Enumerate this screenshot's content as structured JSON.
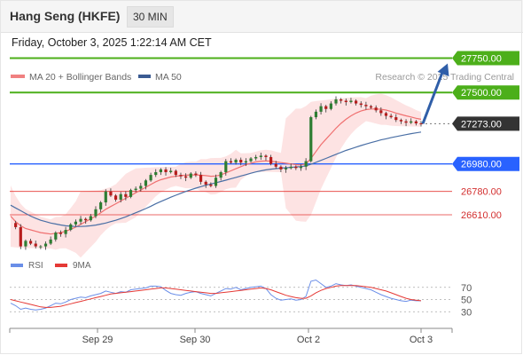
{
  "header": {
    "title": "Hang Seng (HKFE)",
    "timeframe": "30 MIN"
  },
  "datetime": "Friday, October 3, 2025 1:22:14 AM CET",
  "legend": {
    "ma20_label": "MA 20 + Bollinger Bands",
    "ma50_label": "MA 50",
    "credit": "Research © 2025 Trading Central"
  },
  "colors": {
    "up_candle": "#2e7d32",
    "down_candle": "#b71c1c",
    "ma20": "#f07070",
    "ma50": "#4a6fa5",
    "bollinger_fill": "#fde3e3",
    "resistance": "#4caf1a",
    "support_blue": "#2962ff",
    "support_red": "#e53935",
    "rsi": "#6a8ee8",
    "rsi_ma": "#e53935",
    "arrow": "#2f5ea8"
  },
  "chart_data": [
    {
      "type": "candlestick",
      "x_ticks": [
        "Sep 29",
        "Sep 30",
        "Oct 2",
        "Oct 3"
      ],
      "ylim": [
        26300,
        27850
      ],
      "levels": [
        {
          "value": 27750,
          "label": "27750.00",
          "style": "resistance"
        },
        {
          "value": 27500,
          "label": "27500.00",
          "style": "resistance"
        },
        {
          "value": 27273,
          "label": "27273.00",
          "style": "last-price"
        },
        {
          "value": 26980,
          "label": "26980.00",
          "style": "support"
        },
        {
          "value": 26780,
          "label": "26780.00",
          "style": "minor"
        },
        {
          "value": 26610,
          "label": "26610.00",
          "style": "minor"
        }
      ],
      "last_price": 27273,
      "projection_target": 27750,
      "series": [
        {
          "name": "MA 20 + Bollinger Bands"
        },
        {
          "name": "MA 50"
        }
      ],
      "price_path": [
        26550,
        26520,
        26380,
        26420,
        26400,
        26380,
        26380,
        26400,
        26430,
        26480,
        26470,
        26500,
        26540,
        26560,
        26580,
        26570,
        26600,
        26650,
        26700,
        26780,
        26750,
        26720,
        26760,
        26740,
        26790,
        26800,
        26820,
        26860,
        26900,
        26920,
        26940,
        26920,
        26930,
        26900,
        26890,
        26880,
        26910,
        26900,
        26850,
        26830,
        26820,
        26880,
        26920,
        27000,
        26990,
        27010,
        26990,
        27000,
        27020,
        27030,
        27040,
        27030,
        26980,
        26960,
        26940,
        26950,
        26960,
        26950,
        26960,
        27000,
        27320,
        27360,
        27400,
        27380,
        27420,
        27450,
        27440,
        27430,
        27440,
        27420,
        27410,
        27400,
        27390,
        27370,
        27350,
        27330,
        27320,
        27300,
        27290,
        27280,
        27290,
        27275,
        27273
      ],
      "ma20_path": [
        26600,
        26560,
        26530,
        26510,
        26500,
        26490,
        26480,
        26475,
        26470,
        26475,
        26480,
        26490,
        26505,
        26520,
        26540,
        26560,
        26580,
        26600,
        26625,
        26650,
        26670,
        26690,
        26710,
        26730,
        26750,
        26770,
        26790,
        26810,
        26830,
        26850,
        26865,
        26875,
        26885,
        26890,
        26895,
        26898,
        26900,
        26900,
        26898,
        26895,
        26890,
        26892,
        26900,
        26915,
        26930,
        26945,
        26960,
        26975,
        26985,
        26995,
        27000,
        27002,
        27000,
        26995,
        26990,
        26985,
        26980,
        26975,
        26972,
        26980,
        27020,
        27070,
        27120,
        27160,
        27200,
        27240,
        27275,
        27305,
        27330,
        27350,
        27365,
        27375,
        27380,
        27380,
        27378,
        27372,
        27362,
        27350,
        27340,
        27330,
        27322,
        27312,
        27305
      ],
      "ma50_path": [
        26680,
        26660,
        26640,
        26620,
        26600,
        26585,
        26570,
        26560,
        26550,
        26543,
        26536,
        26530,
        26527,
        26525,
        26525,
        26527,
        26530,
        26535,
        26542,
        26550,
        26560,
        26570,
        26582,
        26595,
        26610,
        26625,
        26640,
        26655,
        26672,
        26690,
        26706,
        26722,
        26738,
        26752,
        26766,
        26780,
        26792,
        26804,
        26815,
        26825,
        26834,
        26843,
        26852,
        26862,
        26872,
        26882,
        26892,
        26902,
        26912,
        26922,
        26930,
        26937,
        26942,
        26946,
        26949,
        26952,
        26955,
        26958,
        26961,
        26966,
        26978,
        26992,
        27006,
        27020,
        27035,
        27050,
        27064,
        27078,
        27090,
        27102,
        27114,
        27125,
        27135,
        27145,
        27155,
        27163,
        27171,
        27179,
        27186,
        27193,
        27200,
        27206,
        27212
      ]
    },
    {
      "type": "line",
      "x_ticks": [
        "Sep 29",
        "Sep 30",
        "Oct 2",
        "Oct 3"
      ],
      "ylim": [
        10,
        90
      ],
      "y_ticks": [
        30,
        50,
        70
      ],
      "series": [
        {
          "name": "RSI",
          "values": [
            44,
            40,
            34,
            36,
            34,
            33,
            34,
            36,
            40,
            44,
            43,
            46,
            50,
            52,
            54,
            53,
            56,
            58,
            60,
            64,
            62,
            60,
            63,
            62,
            66,
            67,
            68,
            69,
            72,
            72,
            71,
            65,
            60,
            58,
            57,
            60,
            62,
            63,
            60,
            58,
            56,
            60,
            64,
            68,
            67,
            70,
            66,
            68,
            70,
            71,
            72,
            68,
            58,
            52,
            49,
            50,
            51,
            49,
            50,
            55,
            80,
            82,
            76,
            70,
            72,
            76,
            74,
            73,
            74,
            72,
            70,
            68,
            66,
            62,
            58,
            55,
            52,
            50,
            48,
            47,
            49,
            48,
            48
          ]
        },
        {
          "name": "9MA",
          "values": [
            50,
            48,
            46,
            44,
            42,
            40,
            38,
            37,
            37,
            38,
            39,
            41,
            43,
            45,
            47,
            49,
            51,
            53,
            55,
            57,
            59,
            60,
            61,
            62,
            63,
            64,
            65,
            66,
            67,
            68,
            69,
            69,
            68,
            67,
            66,
            65,
            64,
            63,
            62,
            61,
            60,
            60,
            61,
            62,
            63,
            64,
            65,
            66,
            67,
            68,
            69,
            68,
            66,
            63,
            60,
            57,
            55,
            53,
            52,
            52,
            56,
            61,
            65,
            68,
            70,
            72,
            73,
            73,
            73,
            73,
            72,
            71,
            70,
            68,
            66,
            64,
            61,
            58,
            55,
            52,
            50,
            49,
            48
          ]
        }
      ]
    }
  ]
}
